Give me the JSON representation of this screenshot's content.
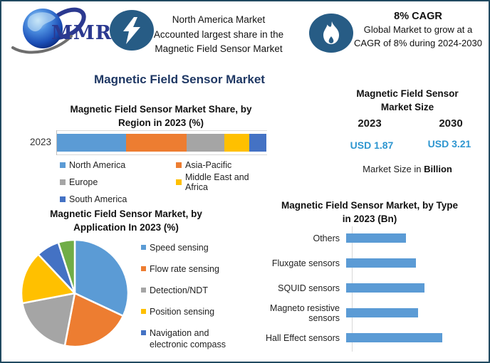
{
  "palette": {
    "blue": "#5B9BD5",
    "orange": "#ED7D31",
    "gray": "#A5A5A5",
    "yellow": "#FFC000",
    "dark_blue": "#4472C4",
    "green": "#70AD47",
    "navy": "#1F3864",
    "usd_blue": "#2E96D0",
    "icon_circle": "#275C85",
    "border": "#214A60"
  },
  "header": {
    "logo_text": "MMR",
    "highlight_left": {
      "icon": "lightning-icon",
      "lines": [
        "North America Market",
        "Accounted largest share in the",
        "Magnetic Field Sensor Market"
      ]
    },
    "highlight_right": {
      "icon": "flame-icon",
      "title": "8% CAGR",
      "lines": [
        "Global Market to grow at a",
        "CAGR of 8% during 2024-2030"
      ]
    }
  },
  "main_title": "Magnetic Field Sensor Market",
  "market_size_panel": {
    "title_lines": [
      "Magnetic Field Sensor",
      "Market Size"
    ],
    "year_left": "2023",
    "year_right": "2030",
    "value_left": "USD 1.87",
    "value_right": "USD 3.21",
    "note_prefix": "Market Size in ",
    "note_bold": "Billion"
  },
  "chart_data": [
    {
      "id": "region_share",
      "type": "bar",
      "subtype": "stacked-horizontal",
      "title": "Magnetic Field Sensor Market Share, by Region in 2023 (%)",
      "title_lines": [
        "Magnetic Field Sensor Market Share, by",
        "Region in 2023 (%)"
      ],
      "categories": [
        "2023"
      ],
      "unit": "%",
      "xlim": [
        0,
        100
      ],
      "legend_position": "bottom",
      "series": [
        {
          "name": "North America",
          "value": 33,
          "color": "blue"
        },
        {
          "name": "Asia-Pacific",
          "value": 29,
          "color": "orange"
        },
        {
          "name": "Europe",
          "value": 18,
          "color": "gray"
        },
        {
          "name": "Middle East and Africa",
          "value": 12,
          "color": "yellow"
        },
        {
          "name": "South America",
          "value": 8,
          "color": "dark_blue"
        }
      ]
    },
    {
      "id": "application_share",
      "type": "pie",
      "title": "Magnetic Field Sensor Market, by Application In 2023 (%)",
      "title_lines": [
        "Magnetic Field Sensor Market, by",
        "Application In 2023 (%)"
      ],
      "unit": "%",
      "legend_position": "right",
      "slices": [
        {
          "label": "Speed sensing",
          "value": 32,
          "color": "blue"
        },
        {
          "label": "Flow rate sensing",
          "value": 21,
          "color": "orange"
        },
        {
          "label": "Detection/NDT",
          "value": 19,
          "color": "gray"
        },
        {
          "label": "Position sensing",
          "value": 16,
          "color": "yellow"
        },
        {
          "label": "Navigation and electronic compass",
          "value": 7,
          "color": "dark_blue"
        },
        {
          "label": "",
          "value": 5,
          "color": "green"
        }
      ]
    },
    {
      "id": "type_market",
      "type": "bar",
      "subtype": "horizontal",
      "title": "Magnetic Field Sensor Market, by Type in 2023 (Bn)",
      "title_lines": [
        "Magnetic Field Sensor Market, by Type",
        "in 2023 (Bn)"
      ],
      "unit": "Bn",
      "bar_color": "blue",
      "categories": [
        "Others",
        "Fluxgate sensors",
        "SQUID sensors",
        "Magneto resistive sensors",
        "Hall Effect sensors"
      ],
      "values": [
        0.3,
        0.35,
        0.39,
        0.36,
        0.48
      ]
    }
  ]
}
